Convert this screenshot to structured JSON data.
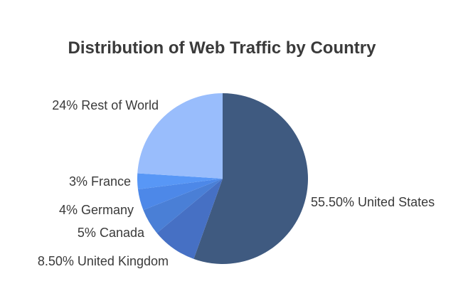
{
  "chart_data": {
    "type": "pie",
    "title": "Distribution of Web Traffic by Country",
    "slices": [
      {
        "name": "United States",
        "value": 55.5,
        "label": "55.50% United States",
        "color": "#3f5a80"
      },
      {
        "name": "United Kingdom",
        "value": 8.5,
        "label": "8.50% United Kingdom",
        "color": "#4670c4"
      },
      {
        "name": "Canada",
        "value": 5,
        "label": "5% Canada",
        "color": "#4a7fd6"
      },
      {
        "name": "Germany",
        "value": 4,
        "label": "4% Germany",
        "color": "#4d88e8"
      },
      {
        "name": "France",
        "value": 3,
        "label": "3% France",
        "color": "#5897f6"
      },
      {
        "name": "Rest of World",
        "value": 24,
        "label": "24% Rest of World",
        "color": "#99bdfc"
      }
    ]
  }
}
